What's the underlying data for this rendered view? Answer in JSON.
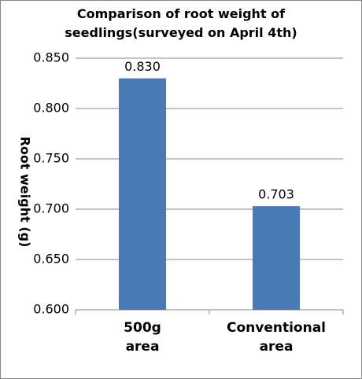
{
  "chart_data": {
    "type": "bar",
    "title": [
      "Comparison of root weight of",
      "seedlings(surveyed on April 4th)"
    ],
    "y_label": "Root weight (g)",
    "categories": [
      "500g area",
      "Conventional area"
    ],
    "values": [
      0.83,
      0.703
    ],
    "value_labels": [
      "0.830",
      "0.703"
    ],
    "color": "#4a7ab5",
    "ylim": [
      0.6,
      0.85
    ],
    "yticks": [
      {
        "value": 0.6,
        "label": "0.600"
      },
      {
        "value": 0.65,
        "label": "0.650"
      },
      {
        "value": 0.7,
        "label": "0.700"
      },
      {
        "value": 0.75,
        "label": "0.750"
      },
      {
        "value": 0.8,
        "label": "0.800"
      },
      {
        "value": 0.85,
        "label": "0.850"
      }
    ],
    "grid": true
  }
}
